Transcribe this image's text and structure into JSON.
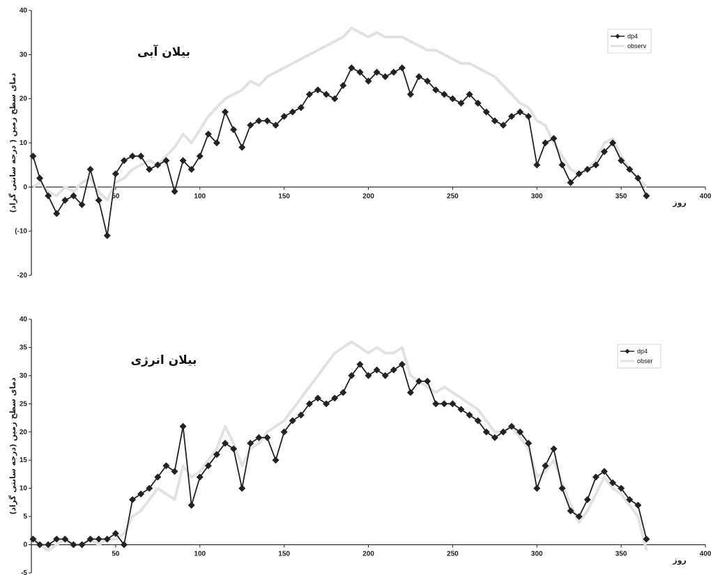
{
  "chart_data": [
    {
      "type": "line",
      "title": "بیلان آبی",
      "xlabel": "روز",
      "ylabel": "دمای سطح زمین ( درجه سانتی گراد)",
      "xlim": [
        0,
        400
      ],
      "ylim": [
        -20,
        40
      ],
      "xticks": [
        "50",
        "100",
        "150",
        "200",
        "250",
        "300",
        "350",
        "400"
      ],
      "yticks": [
        "40",
        "30",
        "20",
        "10",
        "0",
        "(-10",
        "-20"
      ],
      "legend_position": "top-right",
      "series": [
        {
          "name": "dp4",
          "color": "#222222",
          "marker": "diamond",
          "x": [
            1,
            5,
            10,
            15,
            20,
            25,
            30,
            35,
            40,
            45,
            50,
            55,
            60,
            65,
            70,
            75,
            80,
            85,
            90,
            95,
            100,
            105,
            110,
            115,
            120,
            125,
            130,
            135,
            140,
            145,
            150,
            155,
            160,
            165,
            170,
            175,
            180,
            185,
            190,
            195,
            200,
            205,
            210,
            215,
            220,
            225,
            230,
            235,
            240,
            245,
            250,
            255,
            260,
            265,
            270,
            275,
            280,
            285,
            290,
            295,
            300,
            305,
            310,
            315,
            320,
            325,
            330,
            335,
            340,
            345,
            350,
            355,
            360,
            365
          ],
          "y": [
            7,
            2,
            -2,
            -6,
            -3,
            -2,
            -4,
            4,
            -3,
            -11,
            3,
            6,
            7,
            7,
            4,
            5,
            6,
            -1,
            6,
            4,
            7,
            12,
            10,
            17,
            13,
            9,
            14,
            15,
            15,
            14,
            16,
            17,
            18,
            21,
            22,
            21,
            20,
            23,
            27,
            26,
            24,
            26,
            25,
            26,
            27,
            21,
            25,
            24,
            22,
            21,
            20,
            19,
            21,
            19,
            17,
            15,
            14,
            16,
            17,
            16,
            5,
            10,
            11,
            5,
            1,
            3,
            4,
            5,
            8,
            10,
            6,
            4,
            2,
            -2
          ]
        },
        {
          "name": "observ",
          "color": "#e2e2e2",
          "marker": "none",
          "x": [
            1,
            5,
            10,
            15,
            20,
            25,
            30,
            35,
            40,
            45,
            50,
            55,
            60,
            65,
            70,
            75,
            80,
            85,
            90,
            95,
            100,
            105,
            110,
            115,
            120,
            125,
            130,
            135,
            140,
            145,
            150,
            155,
            160,
            165,
            170,
            175,
            180,
            185,
            190,
            195,
            200,
            205,
            210,
            215,
            220,
            225,
            230,
            235,
            240,
            245,
            250,
            255,
            260,
            265,
            270,
            275,
            280,
            285,
            290,
            295,
            300,
            305,
            310,
            315,
            320,
            325,
            330,
            335,
            340,
            345,
            350,
            355,
            360,
            365
          ],
          "y": [
            0,
            1,
            -1,
            -2,
            0,
            -1,
            1,
            2,
            -1,
            -3,
            1,
            2,
            4,
            5,
            6,
            5,
            7,
            9,
            12,
            10,
            13,
            16,
            18,
            20,
            21,
            22,
            24,
            23,
            25,
            26,
            27,
            28,
            29,
            30,
            31,
            32,
            33,
            34,
            36,
            35,
            34,
            35,
            34,
            34,
            34,
            33,
            32,
            31,
            31,
            30,
            29,
            28,
            28,
            27,
            26,
            25,
            23,
            21,
            19,
            18,
            15,
            14,
            10,
            7,
            4,
            3,
            4,
            6,
            10,
            11,
            7,
            4,
            2,
            0
          ]
        }
      ]
    },
    {
      "type": "line",
      "title": "بیلان انرژی",
      "xlabel": "روز",
      "ylabel": "دمای سطح زمین (درجه سانتی گراد)",
      "xlim": [
        0,
        400
      ],
      "ylim": [
        -5,
        40
      ],
      "xticks": [
        "50",
        "100",
        "150",
        "200",
        "250",
        "300",
        "350",
        "400"
      ],
      "yticks": [
        "40",
        "35",
        "30",
        "25",
        "20",
        "15",
        "10",
        "5",
        "0",
        "-5"
      ],
      "legend_position": "top-right",
      "series": [
        {
          "name": "dp4",
          "color": "#222222",
          "marker": "diamond",
          "x": [
            1,
            5,
            10,
            15,
            20,
            25,
            30,
            35,
            40,
            45,
            50,
            55,
            60,
            65,
            70,
            75,
            80,
            85,
            90,
            95,
            100,
            105,
            110,
            115,
            120,
            125,
            130,
            135,
            140,
            145,
            150,
            155,
            160,
            165,
            170,
            175,
            180,
            185,
            190,
            195,
            200,
            205,
            210,
            215,
            220,
            225,
            230,
            235,
            240,
            245,
            250,
            255,
            260,
            265,
            270,
            275,
            280,
            285,
            290,
            295,
            300,
            305,
            310,
            315,
            320,
            325,
            330,
            335,
            340,
            345,
            350,
            355,
            360,
            365
          ],
          "y": [
            1,
            0,
            0,
            1,
            1,
            0,
            0,
            1,
            1,
            1,
            2,
            0,
            8,
            9,
            10,
            12,
            14,
            13,
            21,
            7,
            12,
            14,
            16,
            18,
            17,
            10,
            18,
            19,
            19,
            15,
            20,
            22,
            23,
            25,
            26,
            25,
            26,
            27,
            30,
            32,
            30,
            31,
            30,
            31,
            32,
            27,
            29,
            29,
            25,
            25,
            25,
            24,
            23,
            22,
            20,
            19,
            20,
            21,
            20,
            18,
            10,
            14,
            17,
            10,
            6,
            5,
            8,
            12,
            13,
            11,
            10,
            8,
            7,
            1
          ]
        },
        {
          "name": "obser",
          "color": "#e2e2e2",
          "marker": "none",
          "x": [
            1,
            5,
            10,
            15,
            20,
            25,
            30,
            35,
            40,
            45,
            50,
            55,
            60,
            65,
            70,
            75,
            80,
            85,
            90,
            95,
            100,
            105,
            110,
            115,
            120,
            125,
            130,
            135,
            140,
            145,
            150,
            155,
            160,
            165,
            170,
            175,
            180,
            185,
            190,
            195,
            200,
            205,
            210,
            215,
            220,
            225,
            230,
            235,
            240,
            245,
            250,
            255,
            260,
            265,
            270,
            275,
            280,
            285,
            290,
            295,
            300,
            305,
            310,
            315,
            320,
            325,
            330,
            335,
            340,
            345,
            350,
            355,
            360,
            365
          ],
          "y": [
            1,
            0,
            -1,
            0,
            1,
            0,
            0,
            1,
            0,
            1,
            1,
            2,
            5,
            6,
            8,
            10,
            9,
            8,
            14,
            12,
            13,
            15,
            17,
            21,
            18,
            14,
            17,
            18,
            20,
            21,
            22,
            24,
            26,
            28,
            30,
            32,
            34,
            35,
            36,
            35,
            34,
            35,
            34,
            34,
            35,
            30,
            29,
            28,
            27,
            28,
            27,
            26,
            25,
            24,
            22,
            20,
            20,
            21,
            19,
            17,
            12,
            13,
            15,
            11,
            7,
            4,
            6,
            9,
            12,
            10,
            9,
            7,
            5,
            -1
          ]
        }
      ]
    }
  ]
}
